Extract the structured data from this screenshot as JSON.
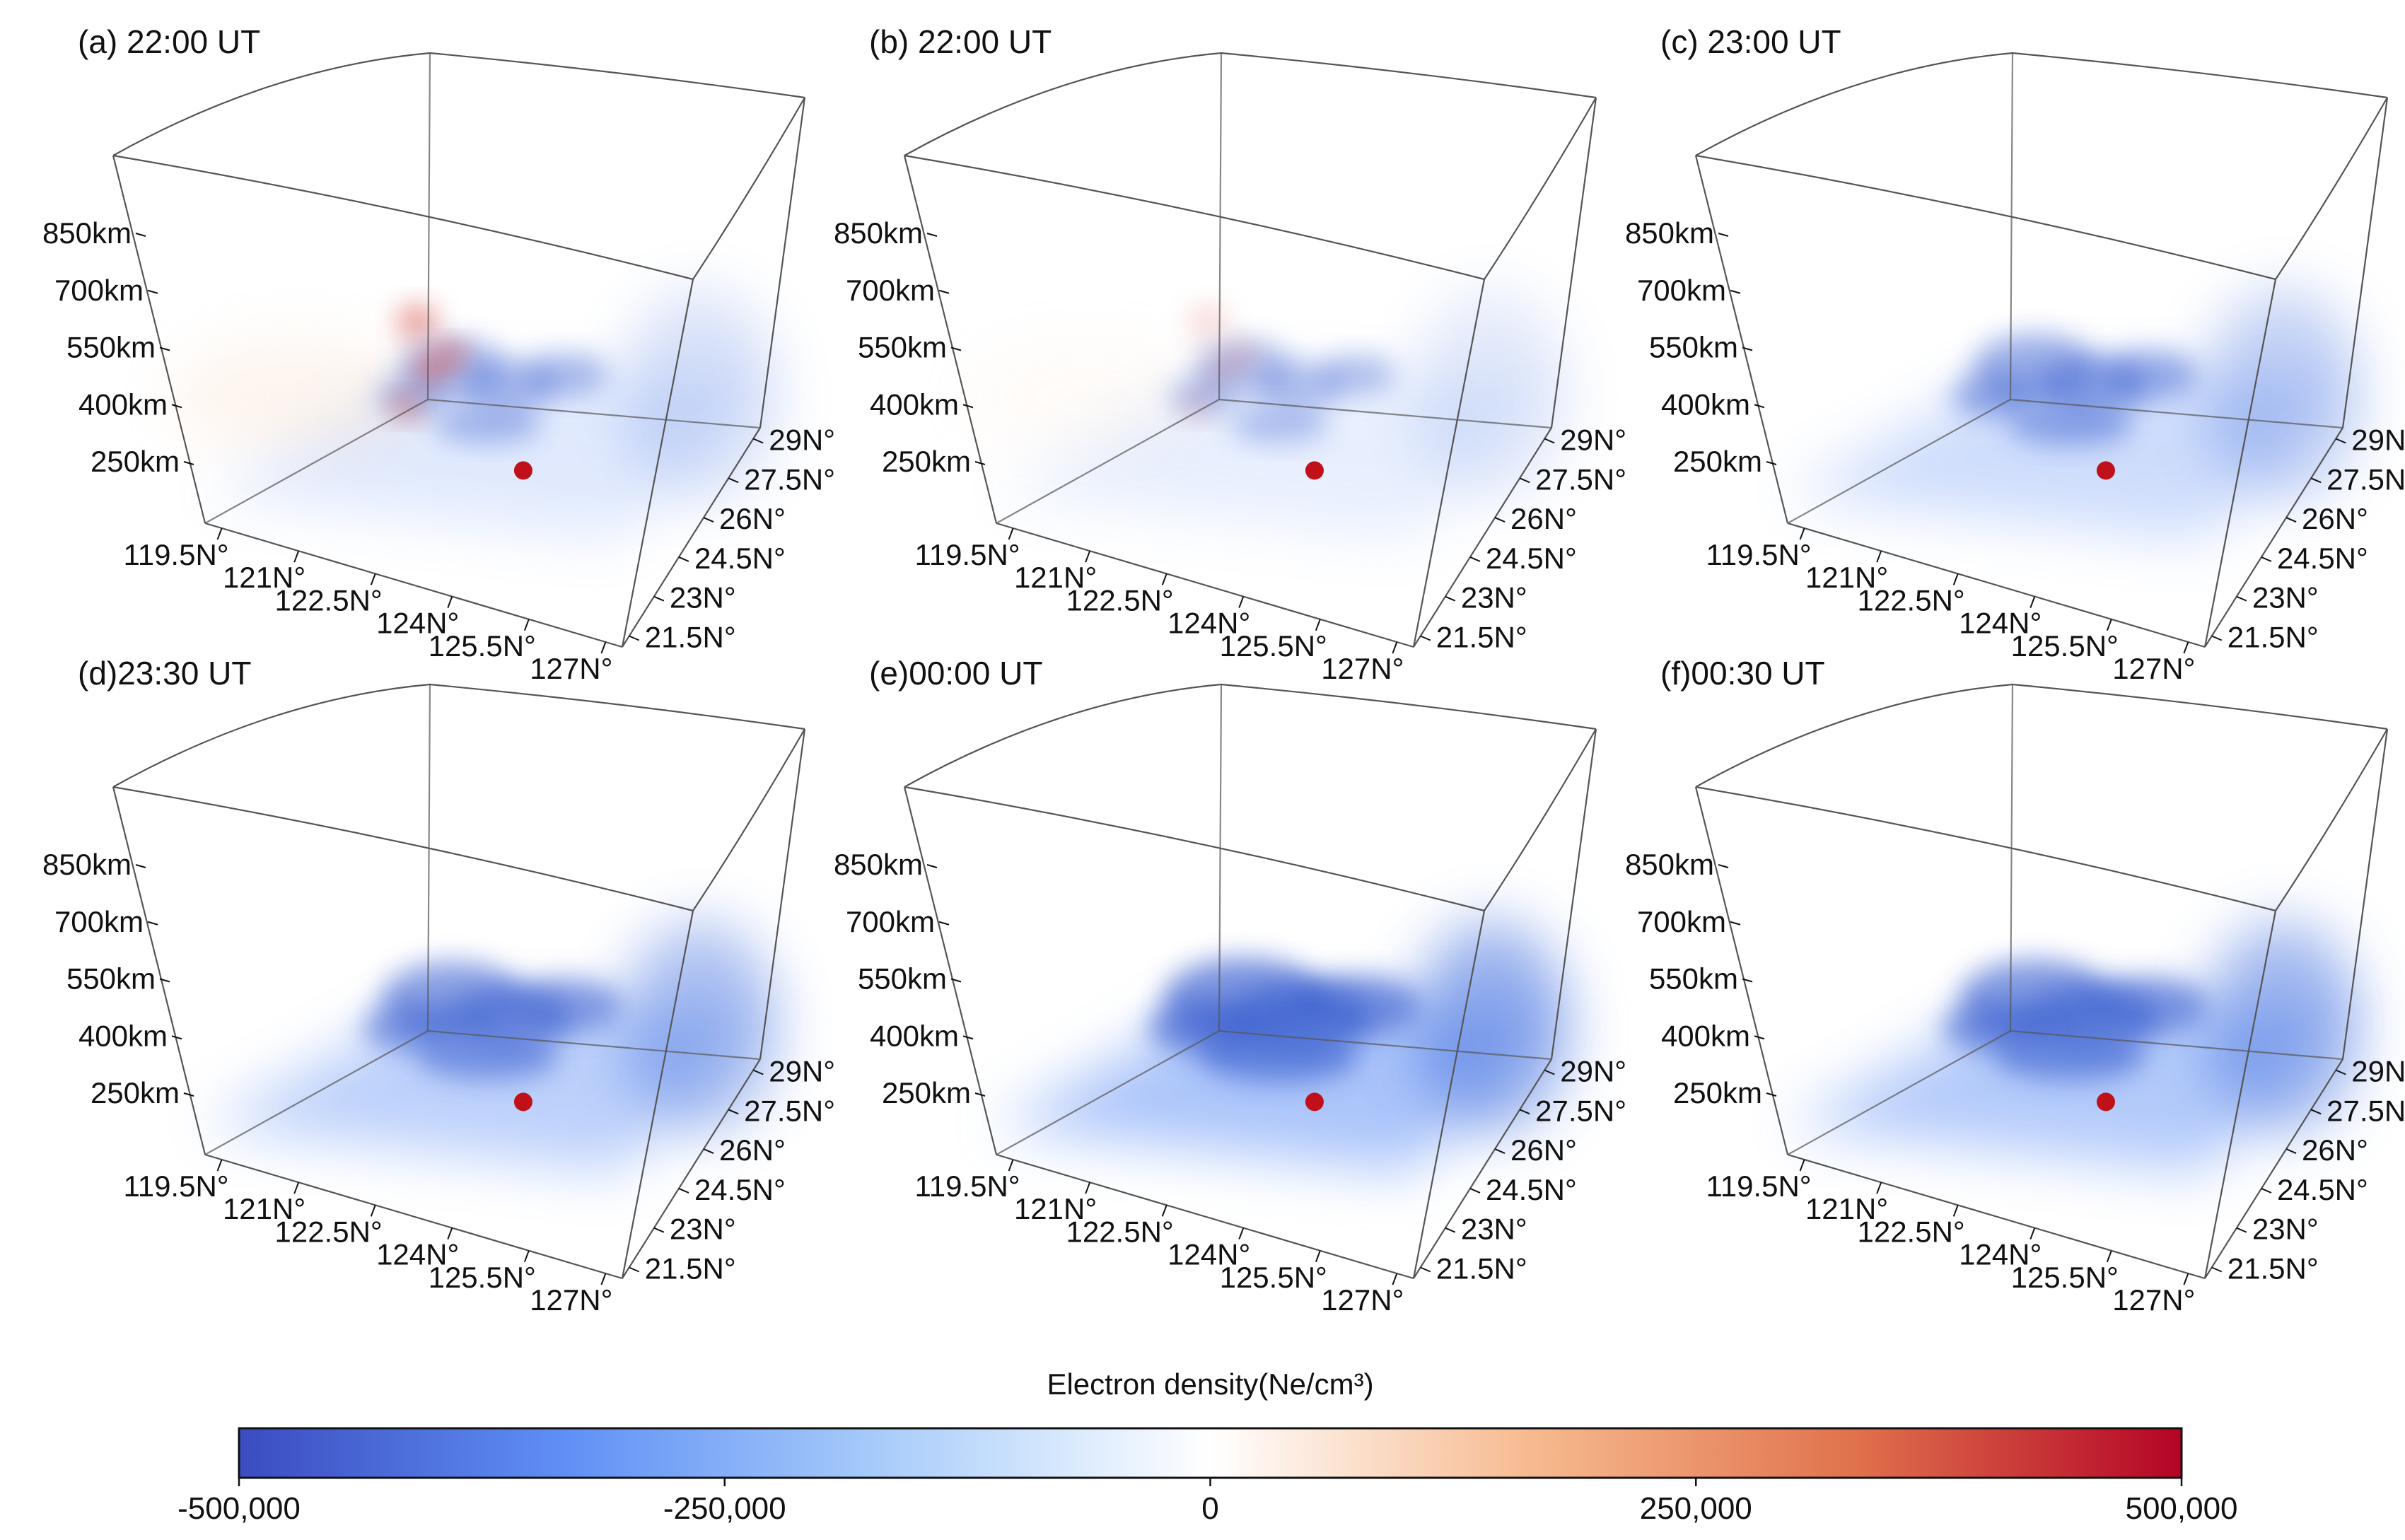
{
  "chart_data": {
    "type": "volume-3d",
    "colorbar": {
      "title": "Electron density(Ne/cm³)",
      "min": -500000,
      "max": 500000,
      "ticks": [
        -500000,
        -250000,
        0,
        250000,
        500000
      ],
      "tick_labels": [
        "-500,000",
        "-250,000",
        "0",
        "250,000",
        "500,000"
      ],
      "colormap": [
        "#3b4cc0",
        "#5f8ff5",
        "#a9cdfa",
        "#ffffff",
        "#f7b98e",
        "#e0714c",
        "#b40426"
      ]
    },
    "panels": [
      {
        "label": "(a) 22:00 UT",
        "altitude_ticks": [
          "250km",
          "400km",
          "550km",
          "700km",
          "850km"
        ],
        "longitude_ticks": [
          "119.5N°",
          "121N°",
          "122.5N°",
          "124N°",
          "125.5N°",
          "127N°"
        ],
        "latitude_ticks": [
          "21.5N°",
          "23N°",
          "24.5N°",
          "26N°",
          "27.5N°",
          "29N°"
        ],
        "epicenter": {
          "lon": 124.0,
          "lat": 25.0
        }
      },
      {
        "label": "(b) 22:00 UT",
        "altitude_ticks": [
          "250km",
          "400km",
          "550km",
          "700km",
          "850km"
        ],
        "longitude_ticks": [
          "119.5N°",
          "121N°",
          "122.5N°",
          "124N°",
          "125.5N°",
          "127N°"
        ],
        "latitude_ticks": [
          "21.5N°",
          "23N°",
          "24.5N°",
          "26N°",
          "27.5N°",
          "29N°"
        ],
        "epicenter": {
          "lon": 124.0,
          "lat": 25.0
        }
      },
      {
        "label": "(c) 23:00 UT",
        "altitude_ticks": [
          "250km",
          "400km",
          "550km",
          "700km",
          "850km"
        ],
        "longitude_ticks": [
          "119.5N°",
          "121N°",
          "122.5N°",
          "124N°",
          "125.5N°",
          "127N°"
        ],
        "latitude_ticks": [
          "21.5N°",
          "23N°",
          "24.5N°",
          "26N°",
          "27.5N°",
          "29N°"
        ],
        "epicenter": {
          "lon": 124.0,
          "lat": 25.0
        }
      },
      {
        "label": "(d)23:30 UT",
        "altitude_ticks": [
          "250km",
          "400km",
          "550km",
          "700km",
          "850km"
        ],
        "longitude_ticks": [
          "119.5N°",
          "121N°",
          "122.5N°",
          "124N°",
          "125.5N°",
          "127N°"
        ],
        "latitude_ticks": [
          "21.5N°",
          "23N°",
          "24.5N°",
          "26N°",
          "27.5N°",
          "29N°"
        ],
        "epicenter": {
          "lon": 124.0,
          "lat": 25.0
        }
      },
      {
        "label": "(e)00:00 UT",
        "altitude_ticks": [
          "250km",
          "400km",
          "550km",
          "700km",
          "850km"
        ],
        "longitude_ticks": [
          "119.5N°",
          "121N°",
          "122.5N°",
          "124N°",
          "125.5N°",
          "127N°"
        ],
        "latitude_ticks": [
          "21.5N°",
          "23N°",
          "24.5N°",
          "26N°",
          "27.5N°",
          "29N°"
        ],
        "epicenter": {
          "lon": 124.0,
          "lat": 25.0
        }
      },
      {
        "label": "(f)00:30 UT",
        "altitude_ticks": [
          "250km",
          "400km",
          "550km",
          "700km",
          "850km"
        ],
        "longitude_ticks": [
          "119.5N°",
          "121N°",
          "122.5N°",
          "124N°",
          "125.5N°",
          "127N°"
        ],
        "latitude_ticks": [
          "21.5N°",
          "23N°",
          "24.5N°",
          "26N°",
          "27.5N°",
          "29N°"
        ],
        "epicenter": {
          "lon": 124.0,
          "lat": 25.0
        }
      }
    ]
  },
  "colors": {
    "epicenter": "#c0111a",
    "frame": "#555555"
  }
}
